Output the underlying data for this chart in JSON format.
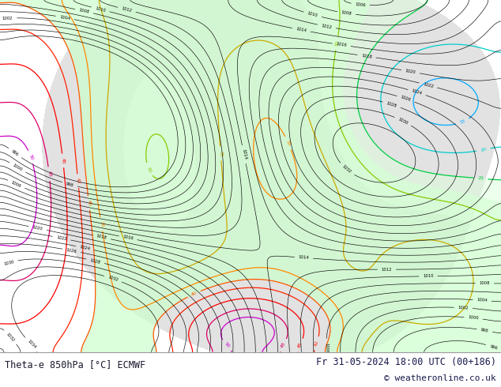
{
  "title_left": "Theta-e 850hPa [°C] ECMWF",
  "title_right": "Fr 31-05-2024 18:00 UTC (00+186)",
  "copyright": "© weatheronline.co.uk",
  "bg_color": "#ffffff",
  "map_bg": "#f0f0f0",
  "text_color_left": "#1a1a2e",
  "text_color_right": "#1a1a4e",
  "figsize": [
    6.34,
    4.9
  ],
  "dpi": 100
}
